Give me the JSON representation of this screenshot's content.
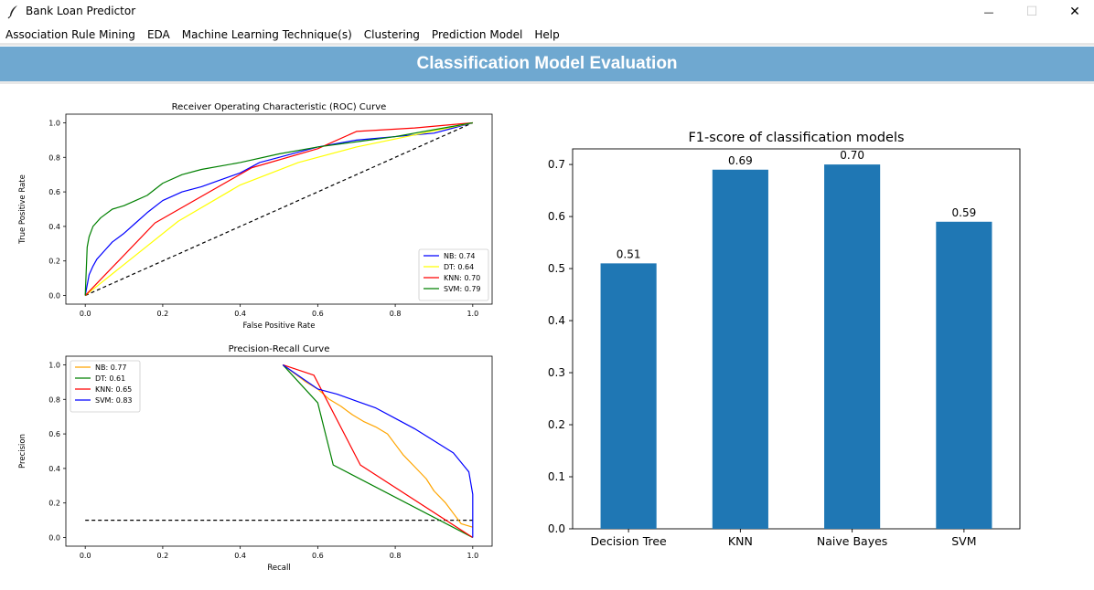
{
  "window": {
    "title": "Bank Loan Predictor",
    "minimize_glyph": "—",
    "maximize_glyph": "☐",
    "close_glyph": "✕"
  },
  "menu": [
    {
      "label": "Association Rule Mining"
    },
    {
      "label": "EDA"
    },
    {
      "label": "Machine Learning Technique(s)"
    },
    {
      "label": "Clustering"
    },
    {
      "label": "Prediction Model"
    },
    {
      "label": "Help"
    }
  ],
  "banner": {
    "title": "Classification Model Evaluation",
    "color": "#6fa8d0"
  },
  "chart_data": [
    {
      "type": "line",
      "title": "Receiver Operating Characteristic (ROC) Curve",
      "xlabel": "False Positive Rate",
      "ylabel": "True Positive Rate",
      "xlim": [
        0,
        1
      ],
      "ylim": [
        0,
        1
      ],
      "xticks": [
        "0.0",
        "0.2",
        "0.4",
        "0.6",
        "0.8",
        "1.0"
      ],
      "yticks": [
        "0.0",
        "0.2",
        "0.4",
        "0.6",
        "0.8",
        "1.0"
      ],
      "legend_position": "lower-right",
      "series": [
        {
          "name": "NB: 0.74",
          "color": "#0000ff",
          "x": [
            0,
            0.01,
            0.02,
            0.03,
            0.05,
            0.07,
            0.1,
            0.13,
            0.16,
            0.2,
            0.25,
            0.3,
            0.35,
            0.4,
            0.45,
            0.5,
            0.55,
            0.6,
            0.65,
            0.7,
            0.75,
            0.8,
            0.85,
            0.9,
            0.95,
            1.0
          ],
          "y": [
            0,
            0.12,
            0.17,
            0.21,
            0.26,
            0.31,
            0.36,
            0.42,
            0.48,
            0.55,
            0.6,
            0.63,
            0.67,
            0.71,
            0.77,
            0.8,
            0.83,
            0.86,
            0.88,
            0.9,
            0.91,
            0.92,
            0.93,
            0.94,
            0.97,
            1.0
          ]
        },
        {
          "name": "DT: 0.64",
          "color": "#ffff00",
          "x": [
            0,
            0.24,
            0.4,
            0.55,
            0.7,
            1.0
          ],
          "y": [
            0,
            0.43,
            0.64,
            0.77,
            0.86,
            1.0
          ]
        },
        {
          "name": "KNN: 0.70",
          "color": "#ff0000",
          "x": [
            0,
            0.18,
            0.43,
            0.6,
            0.7,
            0.85,
            1.0
          ],
          "y": [
            0,
            0.42,
            0.74,
            0.85,
            0.95,
            0.97,
            1.0
          ]
        },
        {
          "name": "SVM: 0.79",
          "color": "#008000",
          "x": [
            0,
            0.005,
            0.01,
            0.02,
            0.04,
            0.07,
            0.1,
            0.13,
            0.16,
            0.2,
            0.25,
            0.3,
            0.4,
            0.5,
            0.6,
            0.7,
            0.8,
            0.9,
            1.0
          ],
          "y": [
            0,
            0.28,
            0.34,
            0.4,
            0.45,
            0.5,
            0.52,
            0.55,
            0.58,
            0.65,
            0.7,
            0.73,
            0.77,
            0.82,
            0.86,
            0.89,
            0.92,
            0.96,
            1.0
          ]
        }
      ],
      "reference_line": {
        "x": [
          0,
          1
        ],
        "y": [
          0,
          1
        ],
        "style": "dashed",
        "color": "#000000"
      }
    },
    {
      "type": "line",
      "title": "Precision-Recall Curve",
      "xlabel": "Recall",
      "ylabel": "Precision",
      "xlim": [
        0,
        1
      ],
      "ylim": [
        0,
        1
      ],
      "xticks": [
        "0.0",
        "0.2",
        "0.4",
        "0.6",
        "0.8",
        "1.0"
      ],
      "yticks": [
        "0.0",
        "0.2",
        "0.4",
        "0.6",
        "0.8",
        "1.0"
      ],
      "legend_position": "upper-left",
      "series": [
        {
          "name": "NB: 0.77",
          "color": "#ffa500",
          "x": [
            0.51,
            0.54,
            0.57,
            0.6,
            0.63,
            0.66,
            0.69,
            0.72,
            0.75,
            0.78,
            0.8,
            0.82,
            0.85,
            0.88,
            0.9,
            0.93,
            0.95,
            0.97,
            1.0
          ],
          "y": [
            1.0,
            0.95,
            0.9,
            0.86,
            0.8,
            0.76,
            0.71,
            0.67,
            0.64,
            0.6,
            0.54,
            0.48,
            0.41,
            0.34,
            0.27,
            0.2,
            0.14,
            0.08,
            0.06
          ]
        },
        {
          "name": "DT: 0.61",
          "color": "#008000",
          "x": [
            0.51,
            0.6,
            0.64,
            1.0
          ],
          "y": [
            1.0,
            0.78,
            0.42,
            0.0
          ]
        },
        {
          "name": "KNN: 0.65",
          "color": "#ff0000",
          "x": [
            0.51,
            0.59,
            0.71,
            1.0
          ],
          "y": [
            1.0,
            0.94,
            0.42,
            0.0
          ]
        },
        {
          "name": "SVM: 0.83",
          "color": "#0000ff",
          "x": [
            0.51,
            0.6,
            0.65,
            0.7,
            0.75,
            0.8,
            0.85,
            0.9,
            0.95,
            0.99,
            1.0,
            1.0
          ],
          "y": [
            1.0,
            0.86,
            0.83,
            0.79,
            0.75,
            0.69,
            0.63,
            0.56,
            0.49,
            0.38,
            0.25,
            0.0
          ]
        }
      ],
      "baseline": {
        "x": [
          0,
          1
        ],
        "y": [
          0.1,
          0.1
        ],
        "style": "dashed",
        "color": "#000000"
      }
    },
    {
      "type": "bar",
      "title": "F1-score of classification models",
      "categories": [
        "Decision Tree",
        "KNN",
        "Naive Bayes",
        "SVM"
      ],
      "values": [
        0.51,
        0.69,
        0.7,
        0.59
      ],
      "value_labels": [
        "0.51",
        "0.69",
        "0.70",
        "0.59"
      ],
      "ylim": [
        0,
        0.73
      ],
      "yticks": [
        "0.0",
        "0.1",
        "0.2",
        "0.3",
        "0.4",
        "0.5",
        "0.6",
        "0.7"
      ],
      "bar_color": "#1f77b4"
    }
  ]
}
